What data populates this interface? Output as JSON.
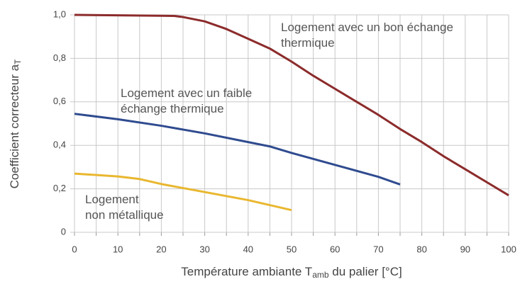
{
  "chart_data": {
    "type": "line",
    "ylabel": [
      "Coefficient correcteur a",
      "T"
    ],
    "xlabel": [
      "Température ambiante T",
      "amb",
      " du palier [°C]"
    ],
    "xlim": [
      0,
      100
    ],
    "xticks": [
      0,
      10,
      20,
      30,
      40,
      50,
      60,
      70,
      80,
      90,
      100
    ],
    "xminorticks": [
      0,
      5,
      10,
      15,
      20,
      25,
      30,
      35,
      40,
      45,
      50,
      55,
      60,
      65,
      70,
      75,
      80,
      85,
      90,
      95,
      100
    ],
    "ylim": [
      0,
      1
    ],
    "yticks": [
      0,
      {
        "value": 0.2,
        "label": "0,2"
      },
      {
        "value": 0.4,
        "label": "0,4"
      },
      {
        "value": 0.6,
        "label": "0,6"
      },
      {
        "value": 0.8,
        "label": "0,8"
      },
      {
        "value": 1,
        "label": "1,0"
      }
    ],
    "grid": true,
    "series": [
      {
        "color": "#8c2b2b",
        "x": [
          0,
          10,
          20,
          23,
          25,
          30,
          35,
          40,
          45,
          50,
          55,
          60,
          65,
          70,
          75,
          80,
          85,
          90,
          95,
          100
        ],
        "values": [
          1.0,
          0.998,
          0.996,
          0.995,
          0.99,
          0.97,
          0.935,
          0.89,
          0.845,
          0.785,
          0.72,
          0.66,
          0.6,
          0.54,
          0.475,
          0.415,
          0.35,
          0.29,
          0.23,
          0.17
        ]
      },
      {
        "color": "#2f4b8f",
        "x": [
          0,
          10,
          20,
          30,
          40,
          45,
          50,
          60,
          70,
          75
        ],
        "values": [
          0.545,
          0.52,
          0.49,
          0.455,
          0.415,
          0.395,
          0.365,
          0.31,
          0.255,
          0.22
        ]
      },
      {
        "color": "#e9b72f",
        "x": [
          0,
          10,
          15,
          20,
          30,
          40,
          50
        ],
        "values": [
          0.27,
          0.257,
          0.245,
          0.222,
          0.185,
          0.148,
          0.102
        ]
      }
    ],
    "annotations": [
      [
        "Logement avec un bon échange",
        "thermique"
      ],
      [
        "Logement avec un faible",
        "échange thermique"
      ],
      [
        "Logement",
        "non métallique"
      ]
    ]
  }
}
